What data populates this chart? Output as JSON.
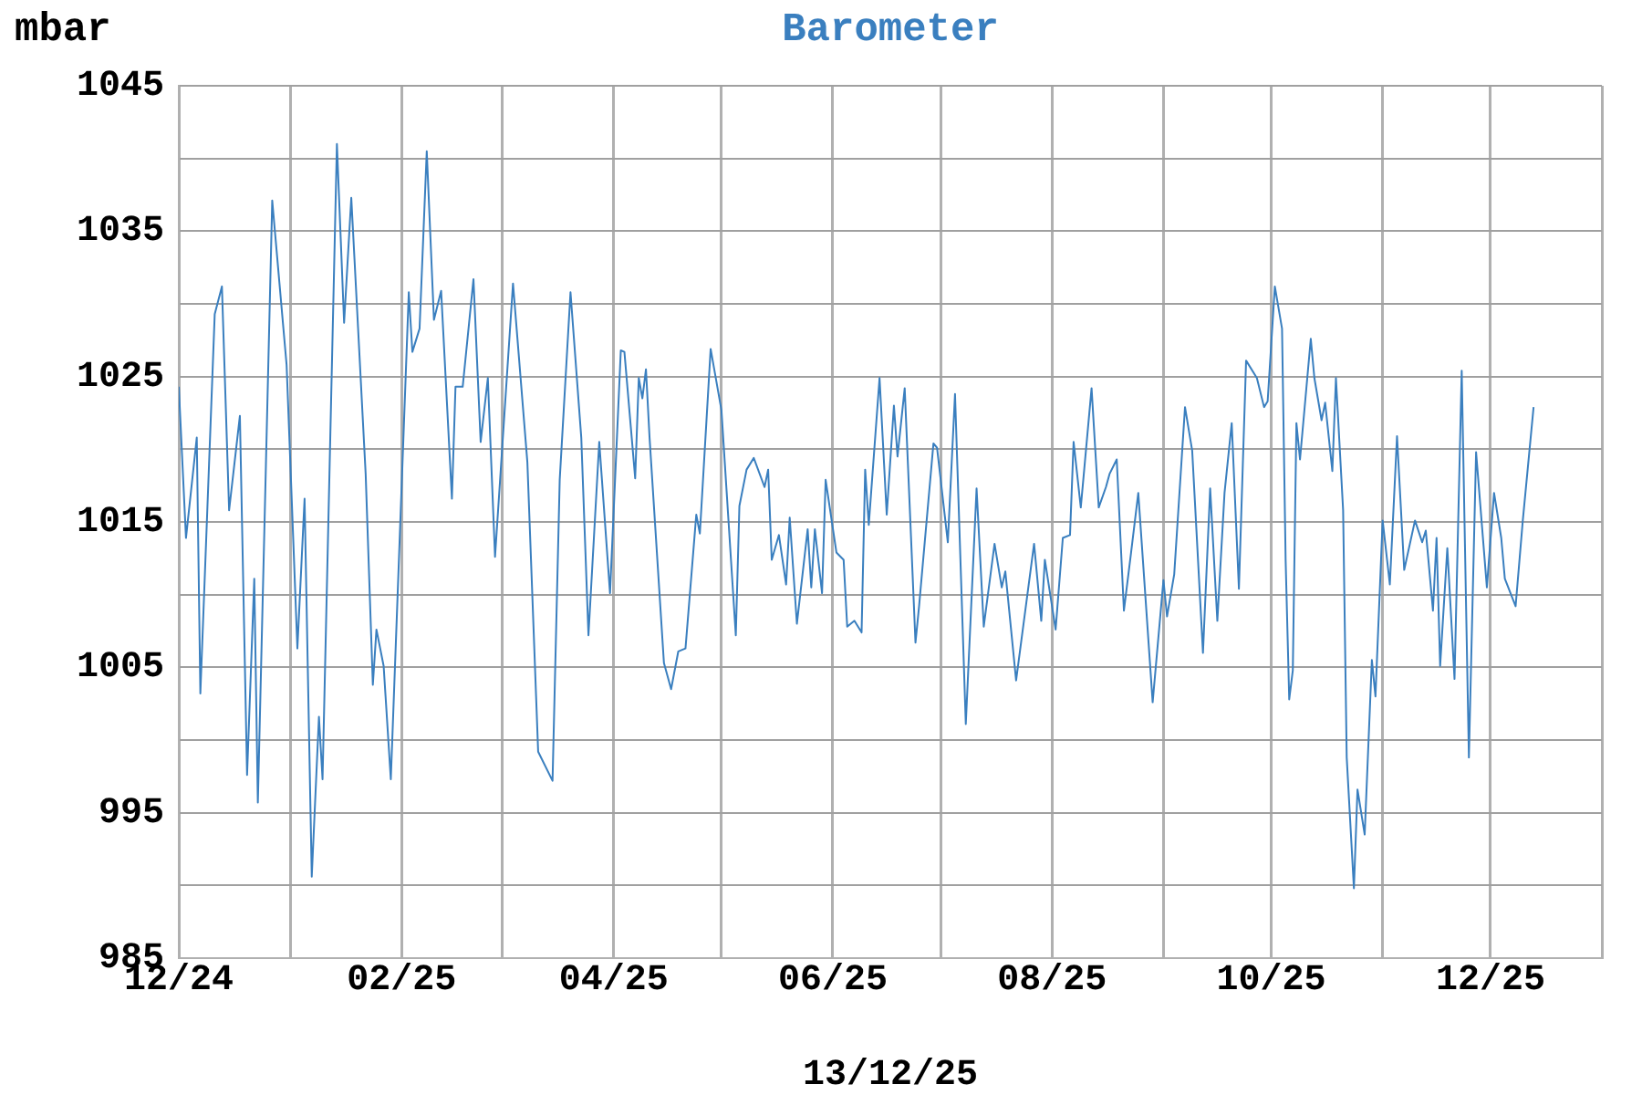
{
  "chart_data": {
    "type": "line",
    "title": "Barometer",
    "ylabel": "mbar",
    "xlabel": "13/12/25",
    "x": [
      "2024-12-01",
      "2024-12-03",
      "2024-12-06",
      "2024-12-07",
      "2024-12-11",
      "2024-12-13",
      "2024-12-15",
      "2024-12-18",
      "2024-12-20",
      "2024-12-22",
      "2024-12-23",
      "2024-12-27",
      "2024-12-31",
      "2025-01-03",
      "2025-01-05",
      "2025-01-07",
      "2025-01-09",
      "2025-01-10",
      "2025-01-14",
      "2025-01-16",
      "2025-01-18",
      "2025-01-22",
      "2025-01-24",
      "2025-01-25",
      "2025-01-27",
      "2025-01-29",
      "2025-02-03",
      "2025-02-04",
      "2025-02-06",
      "2025-02-08",
      "2025-02-10",
      "2025-02-12",
      "2025-02-15",
      "2025-02-16",
      "2025-02-18",
      "2025-02-21",
      "2025-02-23",
      "2025-02-25",
      "2025-02-27",
      "2025-03-04",
      "2025-03-08",
      "2025-03-11",
      "2025-03-15",
      "2025-03-17",
      "2025-03-20",
      "2025-03-23",
      "2025-03-25",
      "2025-03-28",
      "2025-03-31",
      "2025-04-03",
      "2025-04-04",
      "2025-04-07",
      "2025-04-08",
      "2025-04-09",
      "2025-04-10",
      "2025-04-11",
      "2025-04-15",
      "2025-04-17",
      "2025-04-19",
      "2025-04-21",
      "2025-04-24",
      "2025-04-25",
      "2025-04-28",
      "2025-05-01",
      "2025-05-05",
      "2025-05-06",
      "2025-05-08",
      "2025-05-10",
      "2025-05-13",
      "2025-05-14",
      "2025-05-15",
      "2025-05-17",
      "2025-05-19",
      "2025-05-20",
      "2025-05-22",
      "2025-05-25",
      "2025-05-26",
      "2025-05-27",
      "2025-05-29",
      "2025-05-30",
      "2025-06-02",
      "2025-06-04",
      "2025-06-05",
      "2025-06-07",
      "2025-06-09",
      "2025-06-10",
      "2025-06-11",
      "2025-06-14",
      "2025-06-16",
      "2025-06-18",
      "2025-06-19",
      "2025-06-21",
      "2025-06-24",
      "2025-06-25",
      "2025-06-29",
      "2025-06-30",
      "2025-07-03",
      "2025-07-05",
      "2025-07-08",
      "2025-07-11",
      "2025-07-13",
      "2025-07-16",
      "2025-07-18",
      "2025-07-19",
      "2025-07-22",
      "2025-07-27",
      "2025-07-29",
      "2025-07-30",
      "2025-08-02",
      "2025-08-04",
      "2025-08-06",
      "2025-08-07",
      "2025-08-09",
      "2025-08-12",
      "2025-08-14",
      "2025-08-16",
      "2025-08-17",
      "2025-08-19",
      "2025-08-21",
      "2025-08-23",
      "2025-08-25",
      "2025-08-29",
      "2025-09-01",
      "2025-09-02",
      "2025-09-04",
      "2025-09-07",
      "2025-09-09",
      "2025-09-12",
      "2025-09-14",
      "2025-09-16",
      "2025-09-18",
      "2025-09-20",
      "2025-09-22",
      "2025-09-24",
      "2025-09-27",
      "2025-09-29",
      "2025-09-30",
      "2025-10-02",
      "2025-10-04",
      "2025-10-05",
      "2025-10-06",
      "2025-10-07",
      "2025-10-08",
      "2025-10-09",
      "2025-10-12",
      "2025-10-13",
      "2025-10-15",
      "2025-10-16",
      "2025-10-18",
      "2025-10-19",
      "2025-10-21",
      "2025-10-22",
      "2025-10-24",
      "2025-10-25",
      "2025-10-27",
      "2025-10-29",
      "2025-10-30",
      "2025-11-01",
      "2025-11-03",
      "2025-11-05",
      "2025-11-07",
      "2025-11-10",
      "2025-11-12",
      "2025-11-13",
      "2025-11-15",
      "2025-11-16",
      "2025-11-17",
      "2025-11-19",
      "2025-11-21",
      "2025-11-23",
      "2025-11-25",
      "2025-11-27",
      "2025-11-30",
      "2025-12-02",
      "2025-12-04",
      "2025-12-05",
      "2025-12-08",
      "2025-12-10",
      "2025-12-13"
    ],
    "series": [
      {
        "color": "#3a7fbf",
        "values": [
          1024.3,
          1013.9,
          1020.8,
          1003.2,
          1029.3,
          1031.2,
          1015.8,
          1022.3,
          997.6,
          1011.1,
          995.7,
          1037.1,
          1025.8,
          1006.3,
          1016.6,
          990.6,
          1001.6,
          997.3,
          1041.0,
          1028.7,
          1037.3,
          1018.3,
          1003.8,
          1007.6,
          1005.1,
          997.3,
          1030.8,
          1026.7,
          1028.3,
          1040.5,
          1028.9,
          1030.9,
          1016.6,
          1024.3,
          1024.3,
          1031.7,
          1020.5,
          1024.9,
          1012.6,
          1031.4,
          1019.1,
          999.2,
          997.2,
          1017.9,
          1030.8,
          1020.8,
          1007.2,
          1020.5,
          1010.1,
          1026.8,
          1026.7,
          1018.0,
          1024.9,
          1023.5,
          1025.5,
          1020.8,
          1005.3,
          1003.5,
          1006.1,
          1006.3,
          1015.5,
          1014.2,
          1026.9,
          1022.7,
          1007.2,
          1016.1,
          1018.6,
          1019.4,
          1017.4,
          1018.6,
          1012.4,
          1014.1,
          1010.7,
          1015.3,
          1008.0,
          1014.5,
          1010.5,
          1014.5,
          1010.1,
          1017.9,
          1012.9,
          1012.4,
          1007.8,
          1008.2,
          1007.4,
          1018.6,
          1014.8,
          1024.9,
          1015.5,
          1023.0,
          1019.5,
          1024.2,
          1006.7,
          1009.2,
          1020.4,
          1020.1,
          1013.6,
          1023.8,
          1001.1,
          1017.3,
          1007.8,
          1013.5,
          1010.5,
          1011.6,
          1004.1,
          1013.5,
          1008.2,
          1012.4,
          1007.6,
          1013.9,
          1014.1,
          1020.5,
          1016.0,
          1024.2,
          1016.0,
          1017.4,
          1018.3,
          1019.3,
          1008.9,
          1012.9,
          1017.0,
          1002.6,
          1011.0,
          1008.5,
          1011.4,
          1022.9,
          1019.9,
          1006.0,
          1017.3,
          1008.2,
          1017.0,
          1021.8,
          1010.4,
          1026.1,
          1024.9,
          1022.9,
          1023.3,
          1031.2,
          1028.3,
          1012.4,
          1002.8,
          1004.8,
          1021.8,
          1019.3,
          1027.6,
          1024.9,
          1022.0,
          1023.2,
          1018.5,
          1024.9,
          1015.8,
          998.8,
          989.8,
          996.6,
          993.5,
          1005.5,
          1003.0,
          1015.1,
          1010.7,
          1020.9,
          1011.7,
          1015.1,
          1013.6,
          1014.4,
          1008.9,
          1013.9,
          1005.1,
          1013.2,
          1004.2,
          1025.4,
          998.8,
          1019.8,
          1010.5,
          1017.0,
          1013.9,
          1011.1,
          1009.2,
          1015.1,
          1022.9
        ]
      }
    ],
    "xlim": [
      "2024-12-01",
      "2026-01-01"
    ],
    "xticks": [
      {
        "value": "2024-12-01",
        "label": "12/24"
      },
      {
        "value": "2025-01-01",
        "label": null
      },
      {
        "value": "2025-02-01",
        "label": "02/25"
      },
      {
        "value": "2025-03-01",
        "label": null
      },
      {
        "value": "2025-04-01",
        "label": "04/25"
      },
      {
        "value": "2025-05-01",
        "label": null
      },
      {
        "value": "2025-06-01",
        "label": "06/25"
      },
      {
        "value": "2025-07-01",
        "label": null
      },
      {
        "value": "2025-08-01",
        "label": "08/25"
      },
      {
        "value": "2025-09-01",
        "label": null
      },
      {
        "value": "2025-10-01",
        "label": "10/25"
      },
      {
        "value": "2025-11-01",
        "label": null
      },
      {
        "value": "2025-12-01",
        "label": "12/25"
      },
      {
        "value": "2026-01-01",
        "label": null
      }
    ],
    "ylim": [
      985,
      1045
    ],
    "yticks": [
      985,
      {
        "value": 990,
        "label": null
      },
      995,
      {
        "value": 1000,
        "label": null
      },
      1005,
      {
        "value": 1010,
        "label": null
      },
      1015,
      {
        "value": 1020,
        "label": null
      },
      1025,
      {
        "value": 1030,
        "label": null
      },
      1035,
      {
        "value": 1040,
        "label": null
      },
      1045
    ],
    "grid": true,
    "legend": false,
    "marker": "none",
    "line_style": "solid"
  }
}
